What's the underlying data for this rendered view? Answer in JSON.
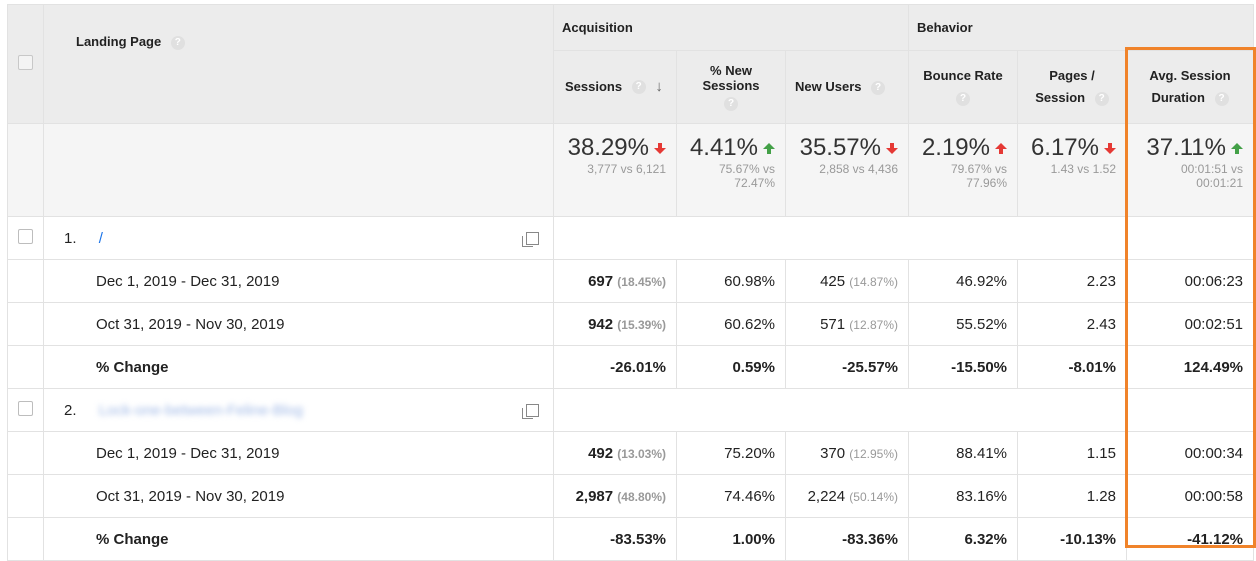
{
  "colors": {
    "highlight": "#f0832a",
    "down": "#e53935",
    "up": "#43a047",
    "link": "#1a73e8"
  },
  "header": {
    "landing_page": "Landing Page",
    "groups": {
      "acquisition": "Acquisition",
      "behavior": "Behavior"
    },
    "columns": {
      "sessions": "Sessions",
      "pct_new_sessions_1": "% New",
      "pct_new_sessions_2": "Sessions",
      "new_users": "New Users",
      "bounce_rate": "Bounce Rate",
      "pages_session_1": "Pages /",
      "pages_session_2": "Session",
      "avg_duration_1": "Avg. Session",
      "avg_duration_2": "Duration"
    },
    "help_icon": "?",
    "sort_icon": "↓"
  },
  "summary": [
    {
      "value": "38.29%",
      "trend": "down",
      "sub": "3,777 vs 6,121"
    },
    {
      "value": "4.41%",
      "trend": "up",
      "sub": "75.67% vs 72.47%"
    },
    {
      "value": "35.57%",
      "trend": "down",
      "sub": "2,858 vs 4,436"
    },
    {
      "value": "2.19%",
      "trend": "upred",
      "sub": "79.67% vs 77.96%"
    },
    {
      "value": "6.17%",
      "trend": "down",
      "sub": "1.43 vs 1.52"
    },
    {
      "value": "37.11%",
      "trend": "up",
      "sub": "00:01:51 vs 00:01:21"
    }
  ],
  "summary_subs": {
    "s2a": "75.67% vs",
    "s2b": "72.47%",
    "s4a": "79.67% vs",
    "s4b": "77.96%",
    "s6a": "00:01:51 vs",
    "s6b": "00:01:21"
  },
  "rows": [
    {
      "rank": "1.",
      "page": "/",
      "periods": [
        {
          "label": "Dec 1, 2019 - Dec 31, 2019",
          "sessions": "697",
          "sessions_pct": "(18.45%)",
          "new_sessions": "60.98%",
          "new_users": "425",
          "new_users_pct": "(14.87%)",
          "bounce": "46.92%",
          "pages": "2.23",
          "duration": "00:06:23"
        },
        {
          "label": "Oct 31, 2019 - Nov 30, 2019",
          "sessions": "942",
          "sessions_pct": "(15.39%)",
          "new_sessions": "60.62%",
          "new_users": "571",
          "new_users_pct": "(12.87%)",
          "bounce": "55.52%",
          "pages": "2.43",
          "duration": "00:02:51"
        }
      ],
      "change": {
        "label": "% Change",
        "sessions": "-26.01%",
        "new_sessions": "0.59%",
        "new_users": "-25.57%",
        "bounce": "-15.50%",
        "pages": "-8.01%",
        "duration": "124.49%"
      }
    },
    {
      "rank": "2.",
      "page": "Lock-one-between-Feline-Blog",
      "periods": [
        {
          "label": "Dec 1, 2019 - Dec 31, 2019",
          "sessions": "492",
          "sessions_pct": "(13.03%)",
          "new_sessions": "75.20%",
          "new_users": "370",
          "new_users_pct": "(12.95%)",
          "bounce": "88.41%",
          "pages": "1.15",
          "duration": "00:00:34"
        },
        {
          "label": "Oct 31, 2019 - Nov 30, 2019",
          "sessions": "2,987",
          "sessions_pct": "(48.80%)",
          "new_sessions": "74.46%",
          "new_users": "2,224",
          "new_users_pct": "(50.14%)",
          "bounce": "83.16%",
          "pages": "1.28",
          "duration": "00:00:58"
        }
      ],
      "change": {
        "label": "% Change",
        "sessions": "-83.53%",
        "new_sessions": "1.00%",
        "new_users": "-83.36%",
        "bounce": "6.32%",
        "pages": "-10.13%",
        "duration": "-41.12%"
      }
    }
  ]
}
